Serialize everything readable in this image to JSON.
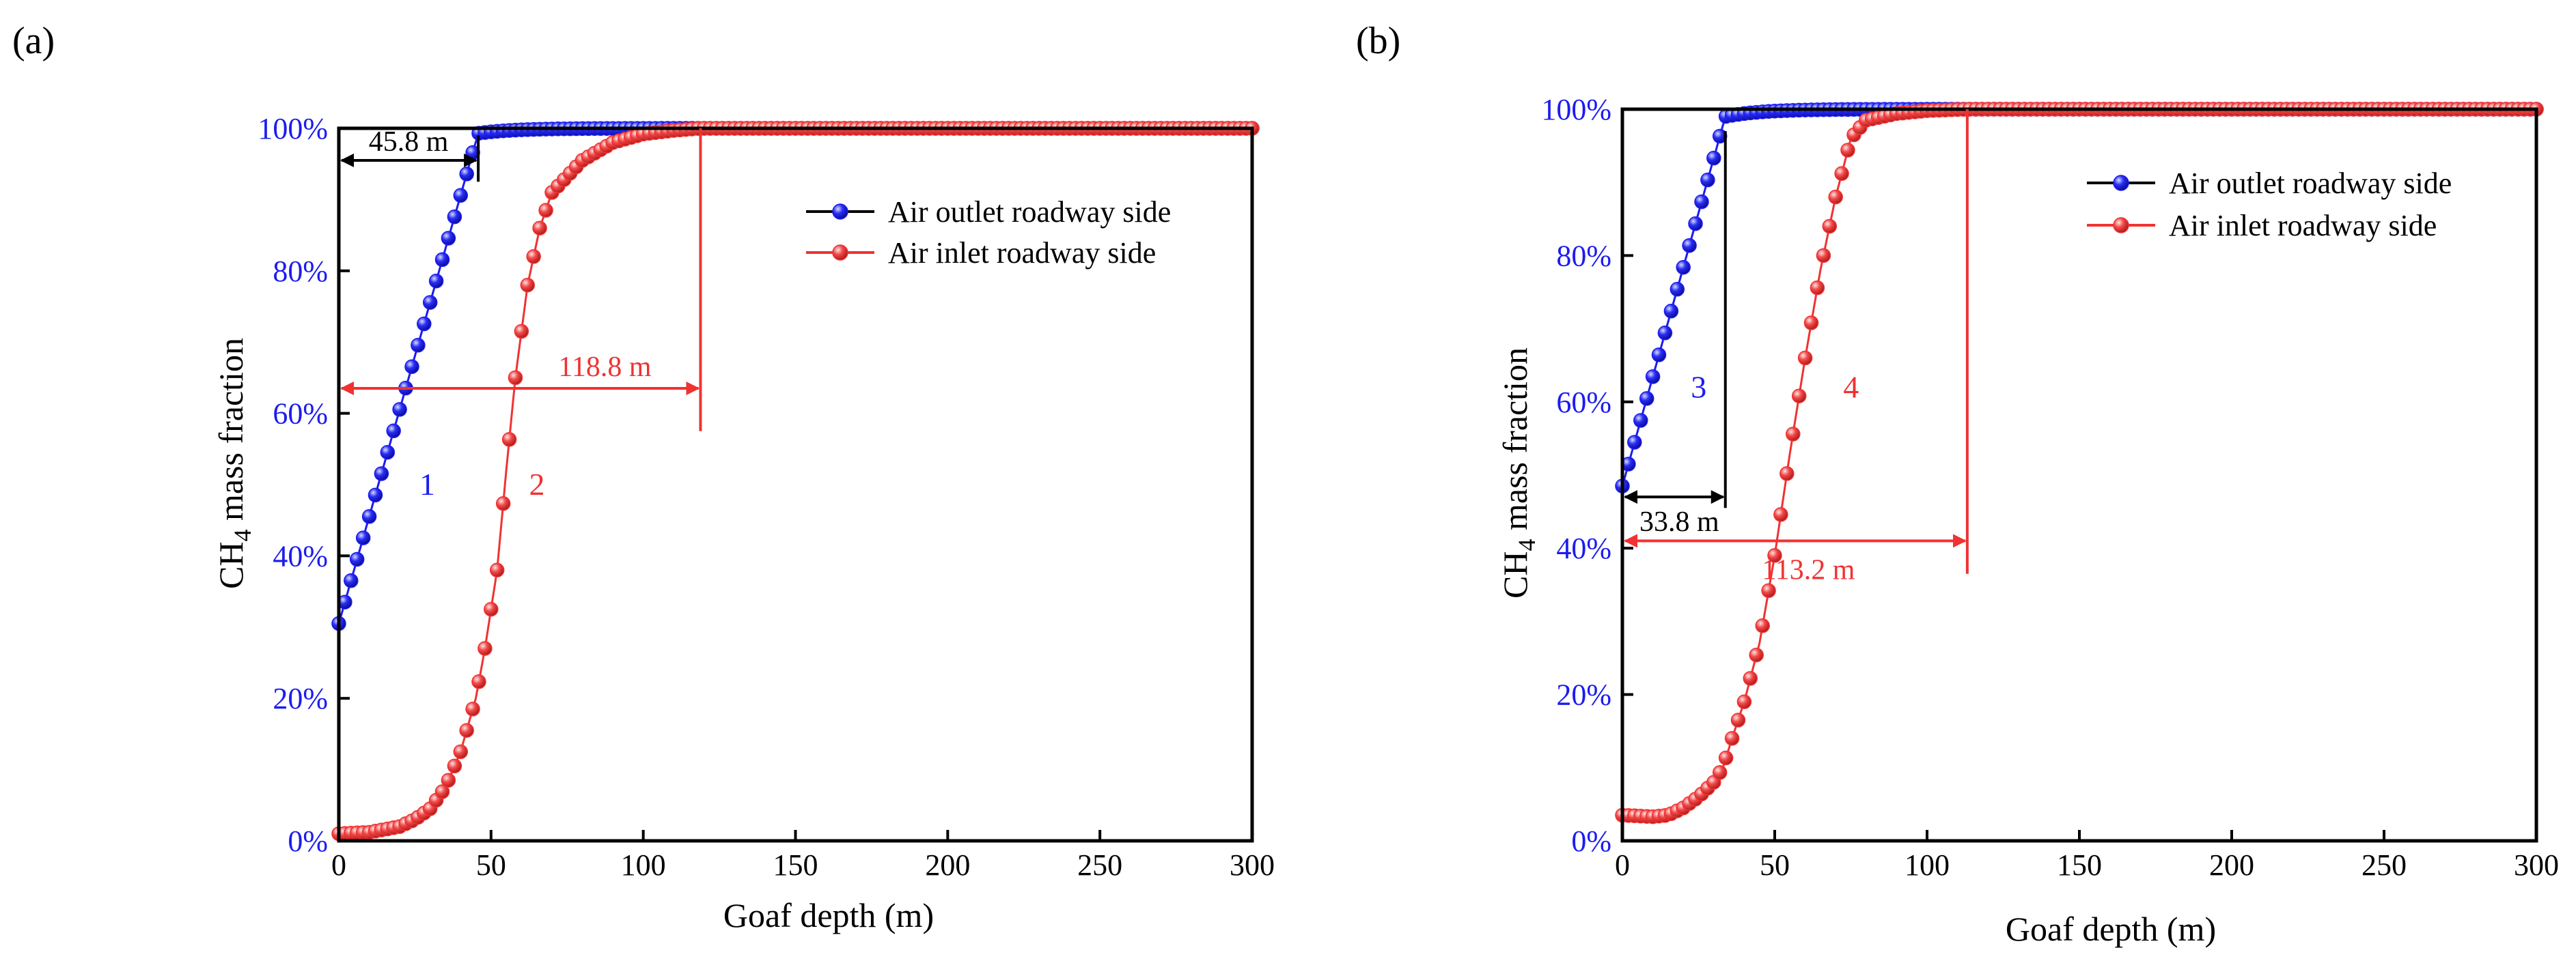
{
  "chart_data": [
    {
      "type": "scatter",
      "panel_label": "(a)",
      "xlabel": "Goaf depth (m)",
      "ylabel": {
        "main": "CH",
        "sub": "4",
        "rest": " mass fraction"
      },
      "xlim": [
        0,
        300
      ],
      "ylim": [
        0,
        100
      ],
      "xticks": [
        "0",
        "50",
        "100",
        "150",
        "200",
        "250",
        "300"
      ],
      "yticks": [
        "0%",
        "20%",
        "40%",
        "60%",
        "80%",
        "100%"
      ],
      "legend": {
        "position": "top-right",
        "entries": [
          "Air outlet roadway side",
          "Air inlet roadway side"
        ]
      },
      "series": [
        {
          "name": "Air outlet roadway side",
          "color": "#1c1cf0",
          "x0": 0,
          "y0": 30.5,
          "kneeX": 45.8,
          "kneeY": 99.3,
          "plateau": 100
        },
        {
          "name": "Air inlet roadway side",
          "color": "#f03232",
          "x": [
            0,
            10,
            20,
            25,
            30,
            35,
            40,
            45,
            48,
            52,
            55,
            58,
            62,
            66,
            70,
            80,
            90,
            100,
            110,
            118.8,
            130,
            300
          ],
          "y": [
            1,
            1.2,
            2,
            3,
            4.5,
            7.5,
            12.5,
            20,
            27,
            38,
            52,
            65,
            78,
            86,
            91,
            95.5,
            98,
            99.2,
            99.7,
            100,
            100,
            100
          ]
        }
      ],
      "annotations": {
        "curve_labels": [
          {
            "text": "1",
            "color": "#1c1cf0",
            "x": 22,
            "y": 50
          },
          {
            "text": "2",
            "color": "#f03232",
            "x": 58,
            "y": 50
          }
        ],
        "distances": [
          {
            "text": "45.8 m",
            "color": "#000000",
            "value": 45.8,
            "y": 95.5,
            "vline_top": 99,
            "vline_bottom": 92.5
          },
          {
            "text": "118.8 m",
            "color": "#f03232",
            "value": 118.8,
            "y": 63.5,
            "vline_top": 100,
            "vline_bottom": 57.5
          }
        ]
      }
    },
    {
      "type": "scatter",
      "panel_label": "(b)",
      "xlabel": "Goaf depth (m)",
      "ylabel": {
        "main": "CH",
        "sub": "4",
        "rest": " mass fraction"
      },
      "xlim": [
        0,
        300
      ],
      "ylim": [
        0,
        100
      ],
      "xticks": [
        "0",
        "50",
        "100",
        "150",
        "200",
        "250",
        "300"
      ],
      "yticks": [
        "0%",
        "20%",
        "40%",
        "60%",
        "80%",
        "100%"
      ],
      "legend": {
        "position": "top-right",
        "entries": [
          "Air outlet roadway side",
          "Air inlet roadway side"
        ]
      },
      "series": [
        {
          "name": "Air outlet roadway side",
          "color": "#1c1cf0",
          "x0": 0,
          "y0": 48.5,
          "kneeX": 33.8,
          "kneeY": 99,
          "plateau": 100
        },
        {
          "name": "Air inlet roadway side",
          "color": "#f03232",
          "x": [
            0,
            10,
            15,
            20,
            25,
            30,
            33,
            36,
            40,
            45,
            50,
            55,
            60,
            65,
            70,
            75,
            80,
            90,
            100,
            113.2,
            300
          ],
          "y": [
            3.5,
            3.3,
            3.5,
            4.5,
            6,
            8,
            10,
            14,
            19,
            27,
            39,
            53,
            66,
            78,
            88,
            96,
            98.5,
            99.4,
            99.8,
            100,
            100
          ]
        }
      ],
      "annotations": {
        "curve_labels": [
          {
            "text": "3",
            "color": "#1c1cf0",
            "x": 18,
            "y": 62
          },
          {
            "text": "4",
            "color": "#f03232",
            "x": 68,
            "y": 62
          }
        ],
        "distances": [
          {
            "text": "33.8 m",
            "color": "#000000",
            "value": 33.8,
            "y": 47,
            "vline_top": 97,
            "vline_bottom": 45.5
          },
          {
            "text": "113.2 m",
            "color": "#f03232",
            "value": 113.2,
            "y": 41,
            "vline_top": 100,
            "vline_bottom": 36.5
          }
        ]
      }
    }
  ]
}
